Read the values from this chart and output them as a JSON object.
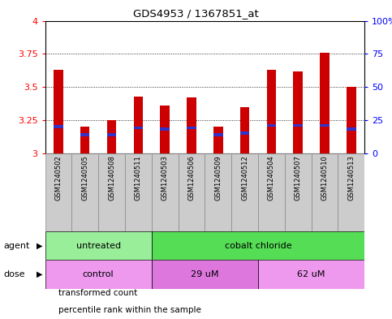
{
  "title": "GDS4953 / 1367851_at",
  "samples": [
    "GSM1240502",
    "GSM1240505",
    "GSM1240508",
    "GSM1240511",
    "GSM1240503",
    "GSM1240506",
    "GSM1240509",
    "GSM1240512",
    "GSM1240504",
    "GSM1240507",
    "GSM1240510",
    "GSM1240513"
  ],
  "transformed_counts": [
    3.63,
    3.2,
    3.25,
    3.43,
    3.36,
    3.42,
    3.2,
    3.35,
    3.63,
    3.62,
    3.76,
    3.5
  ],
  "percentile_ranks": [
    20,
    14,
    14,
    19,
    18,
    19,
    14,
    15,
    21,
    21,
    21,
    18
  ],
  "y_min": 3.0,
  "y_max": 4.0,
  "y_ticks": [
    3.0,
    3.25,
    3.5,
    3.75,
    4.0
  ],
  "y_tick_labels": [
    "3",
    "3.25",
    "3.5",
    "3.75",
    "4"
  ],
  "right_y_ticks": [
    0,
    25,
    50,
    75,
    100
  ],
  "right_y_labels": [
    "0",
    "25",
    "50",
    "75",
    "100%"
  ],
  "bar_color": "#cc0000",
  "blue_color": "#3333cc",
  "agent_groups": [
    {
      "label": "untreated",
      "start": 0,
      "end": 4,
      "color": "#99ee99"
    },
    {
      "label": "cobalt chloride",
      "start": 4,
      "end": 12,
      "color": "#55dd55"
    }
  ],
  "dose_groups": [
    {
      "label": "control",
      "start": 0,
      "end": 4,
      "color": "#ee99ee"
    },
    {
      "label": "29 uM",
      "start": 4,
      "end": 8,
      "color": "#dd77dd"
    },
    {
      "label": "62 uM",
      "start": 8,
      "end": 12,
      "color": "#ee99ee"
    }
  ],
  "legend_items": [
    {
      "color": "#cc0000",
      "label": "transformed count"
    },
    {
      "color": "#3333cc",
      "label": "percentile rank within the sample"
    }
  ],
  "sample_box_color": "#cccccc",
  "sample_box_edge": "#888888"
}
